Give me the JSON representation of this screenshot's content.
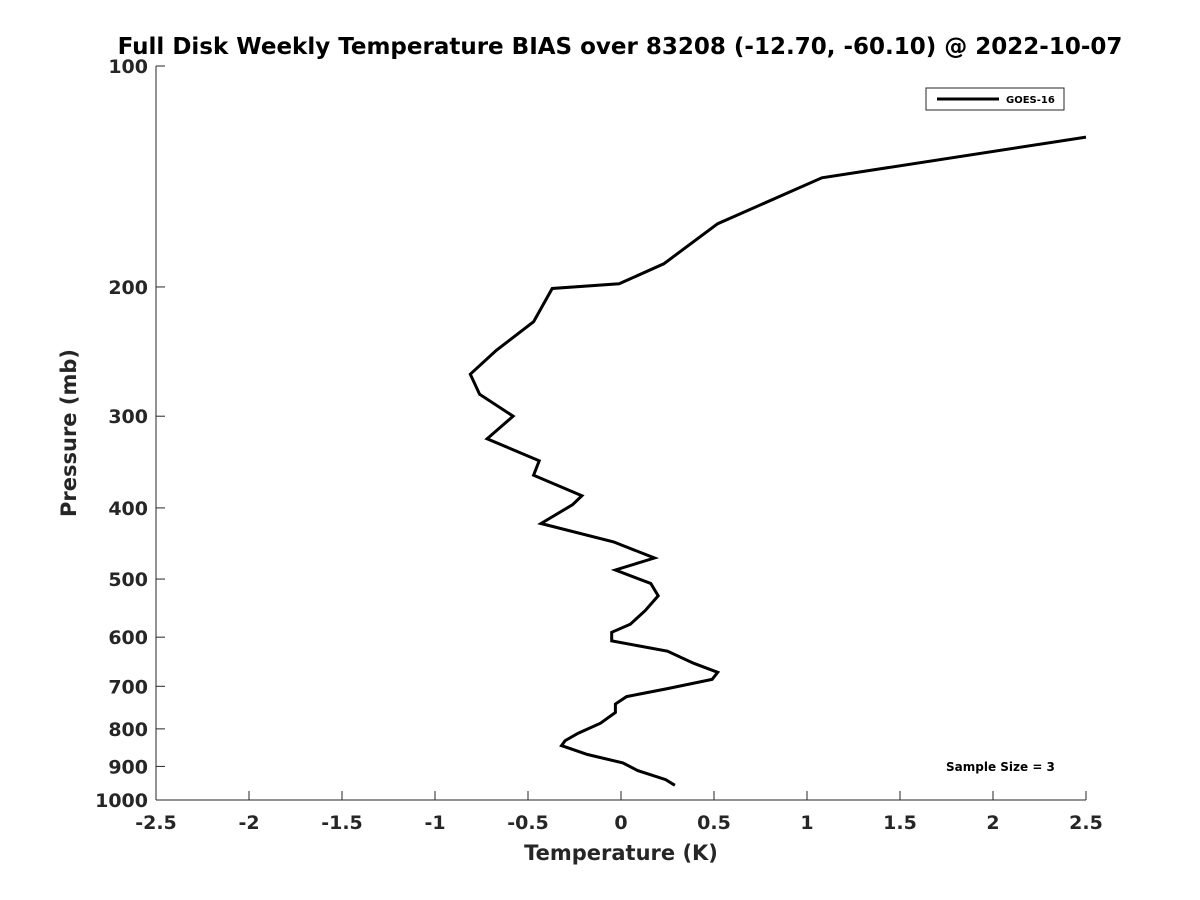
{
  "chart_data": {
    "type": "line",
    "title": "Full Disk Weekly Temperature BIAS over 83208 (-12.70, -60.10) @ 2022-10-07",
    "xlabel": "Temperature (K)",
    "ylabel": "Pressure (mb)",
    "xlim": [
      -2.5,
      2.5
    ],
    "ylim": [
      100,
      1000
    ],
    "y_scale": "log",
    "y_reversed": true,
    "x_ticks": [
      "-2.5",
      "-2",
      "-1.5",
      "-1",
      "-0.5",
      "0",
      "0.5",
      "1",
      "1.5",
      "2",
      "2.5"
    ],
    "y_ticks": [
      "100",
      "200",
      "300",
      "400",
      "500",
      "600",
      "700",
      "800",
      "900",
      "1000"
    ],
    "grid": false,
    "legend": "top-right",
    "annotation": "Sample Size = 3",
    "series": [
      {
        "name": "GOES-16",
        "color": "#000000",
        "x": [
          2.5,
          1.08,
          0.52,
          0.23,
          -0.01,
          -0.37,
          -0.47,
          -0.67,
          -0.81,
          -0.76,
          -0.58,
          -0.72,
          -0.44,
          -0.47,
          -0.21,
          -0.26,
          -0.43,
          -0.04,
          0.18,
          -0.03,
          0.16,
          0.2,
          0.13,
          0.05,
          -0.05,
          -0.05,
          0.25,
          0.39,
          0.52,
          0.49,
          0.25,
          0.03,
          -0.03,
          -0.03,
          -0.11,
          -0.23,
          -0.3,
          -0.32,
          -0.18,
          0.01,
          0.09,
          0.24,
          0.29
        ],
        "y": [
          125,
          142,
          164,
          186,
          198,
          201,
          223,
          244,
          263,
          280,
          300,
          322,
          345,
          361,
          385,
          396,
          420,
          445,
          468,
          486,
          507,
          527,
          552,
          576,
          591,
          607,
          627,
          651,
          670,
          685,
          705,
          723,
          740,
          760,
          786,
          811,
          830,
          843,
          867,
          890,
          912,
          938,
          955
        ]
      }
    ]
  }
}
